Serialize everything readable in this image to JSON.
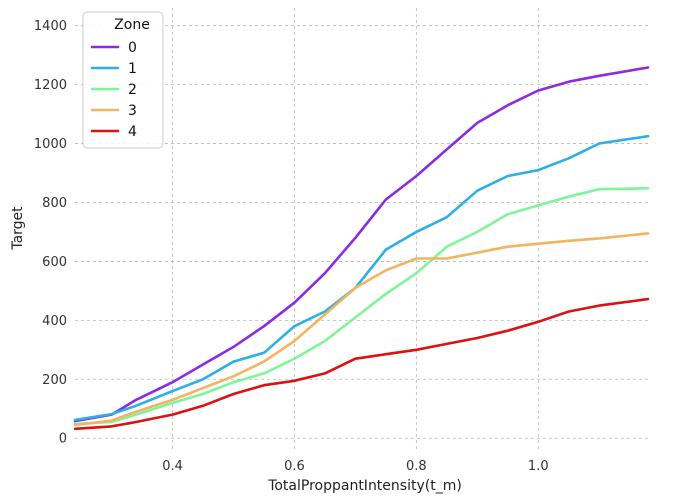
{
  "chart_data": {
    "type": "line",
    "title": "",
    "xlabel": "TotalProppantIntensity(t_m)",
    "ylabel": "Target",
    "xlim": [
      0.24,
      1.18
    ],
    "ylim": [
      -40,
      1460
    ],
    "xticks": [
      0.4,
      0.6,
      0.8,
      1.0
    ],
    "xtick_labels": [
      "0.4",
      "0.6",
      "0.8",
      "1.0"
    ],
    "yticks": [
      0,
      200,
      400,
      600,
      800,
      1000,
      1200,
      1400
    ],
    "ytick_labels": [
      "0",
      "200",
      "400",
      "600",
      "800",
      "1000",
      "1200",
      "1400"
    ],
    "grid": true,
    "legend": {
      "title": "Zone",
      "position": "top-left"
    },
    "x": [
      0.24,
      0.3,
      0.34,
      0.4,
      0.45,
      0.5,
      0.55,
      0.6,
      0.65,
      0.7,
      0.75,
      0.8,
      0.85,
      0.9,
      0.95,
      1.0,
      1.05,
      1.1,
      1.18
    ],
    "series": [
      {
        "name": "0",
        "color": "#8a2be2",
        "values": [
          58,
          80,
          130,
          190,
          250,
          310,
          380,
          460,
          560,
          680,
          810,
          890,
          980,
          1070,
          1130,
          1180,
          1210,
          1230,
          1258
        ]
      },
      {
        "name": "1",
        "color": "#2ab0e6",
        "values": [
          62,
          82,
          110,
          160,
          200,
          260,
          290,
          380,
          430,
          510,
          640,
          700,
          750,
          840,
          890,
          910,
          950,
          1000,
          1025
        ]
      },
      {
        "name": "2",
        "color": "#7ff59a",
        "values": [
          48,
          55,
          80,
          120,
          150,
          190,
          220,
          270,
          330,
          410,
          490,
          560,
          650,
          700,
          760,
          790,
          820,
          845,
          848
        ]
      },
      {
        "name": "3",
        "color": "#f2b45f",
        "values": [
          45,
          60,
          90,
          130,
          170,
          210,
          260,
          330,
          420,
          510,
          570,
          610,
          610,
          630,
          650,
          660,
          670,
          678,
          695
        ]
      },
      {
        "name": "4",
        "color": "#dd1111",
        "values": [
          32,
          40,
          55,
          80,
          110,
          150,
          180,
          195,
          220,
          270,
          285,
          300,
          320,
          340,
          365,
          395,
          430,
          450,
          472
        ]
      }
    ]
  }
}
